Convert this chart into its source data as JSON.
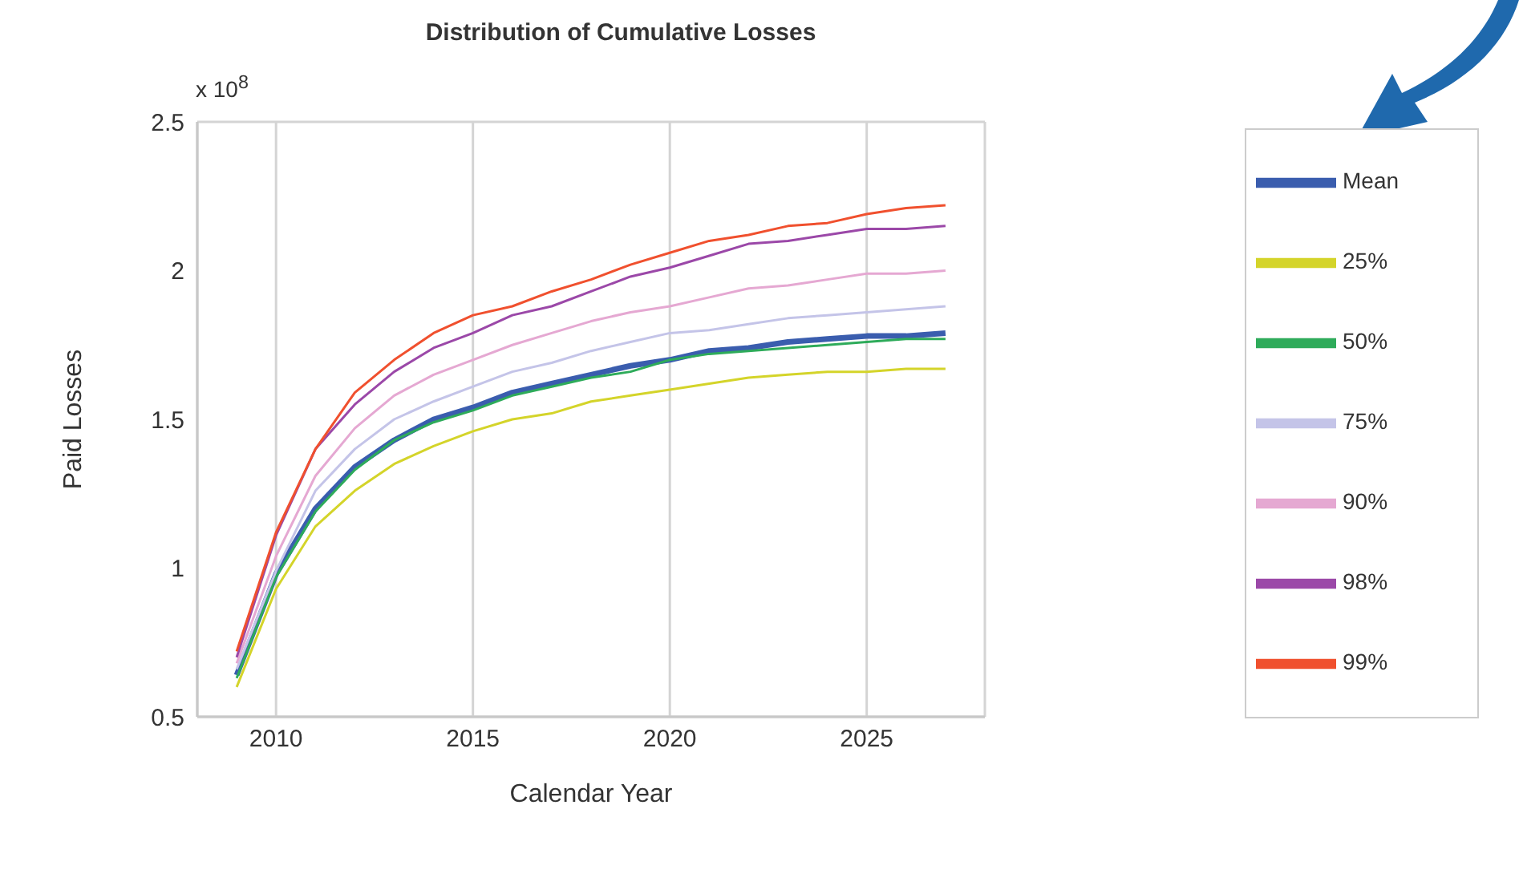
{
  "chart_data": {
    "type": "line",
    "title": "Distribution of Cumulative Losses",
    "xlabel": "Calendar Year",
    "ylabel": "Paid Losses",
    "annotations": [
      "x 10$^{8}$"
    ],
    "x": [
      2009,
      2010,
      2011,
      2012,
      2013,
      2014,
      2015,
      2016,
      2017,
      2018,
      2019,
      2020,
      2021,
      2022,
      2023,
      2024,
      2025,
      2026,
      2027
    ],
    "series": [
      {
        "name": "Mean",
        "color": "#3a5dae",
        "values": [
          0.64,
          0.98,
          1.2,
          1.34,
          1.43,
          1.5,
          1.54,
          1.59,
          1.62,
          1.65,
          1.68,
          1.7,
          1.73,
          1.74,
          1.76,
          1.77,
          1.78,
          1.78,
          1.79
        ]
      },
      {
        "name": "25%",
        "color": "#d4d42a",
        "values": [
          0.6,
          0.93,
          1.14,
          1.26,
          1.35,
          1.41,
          1.46,
          1.5,
          1.52,
          1.56,
          1.58,
          1.6,
          1.62,
          1.64,
          1.65,
          1.66,
          1.66,
          1.67,
          1.67
        ]
      },
      {
        "name": "50%",
        "color": "#2eab5a",
        "values": [
          0.63,
          0.97,
          1.19,
          1.33,
          1.43,
          1.49,
          1.53,
          1.58,
          1.61,
          1.64,
          1.66,
          1.7,
          1.72,
          1.73,
          1.74,
          1.75,
          1.76,
          1.77,
          1.77
        ]
      },
      {
        "name": "75%",
        "color": "#c4c4e8",
        "values": [
          0.66,
          0.99,
          1.26,
          1.4,
          1.5,
          1.56,
          1.61,
          1.66,
          1.69,
          1.73,
          1.76,
          1.79,
          1.8,
          1.82,
          1.84,
          1.85,
          1.86,
          1.87,
          1.88
        ]
      },
      {
        "name": "90%",
        "color": "#e5a8d2",
        "values": [
          0.68,
          1.04,
          1.31,
          1.47,
          1.58,
          1.65,
          1.7,
          1.75,
          1.79,
          1.83,
          1.86,
          1.88,
          1.91,
          1.94,
          1.95,
          1.97,
          1.99,
          1.99,
          2.0
        ]
      },
      {
        "name": "98%",
        "color": "#9b48a8",
        "values": [
          0.7,
          1.11,
          1.4,
          1.55,
          1.66,
          1.74,
          1.79,
          1.85,
          1.88,
          1.93,
          1.98,
          2.01,
          2.05,
          2.09,
          2.1,
          2.12,
          2.14,
          2.14,
          2.15
        ]
      },
      {
        "name": "99%",
        "color": "#f0502e",
        "values": [
          0.72,
          1.12,
          1.4,
          1.59,
          1.7,
          1.79,
          1.85,
          1.88,
          1.93,
          1.97,
          2.02,
          2.06,
          2.1,
          2.12,
          2.15,
          2.16,
          2.19,
          2.21,
          2.22
        ]
      }
    ],
    "xlim": [
      2008,
      2028
    ],
    "xticks": [
      2010,
      2015,
      2020,
      2025
    ],
    "ylim": [
      0.5,
      2.5
    ],
    "yticks": [
      0.5,
      1,
      1.5,
      2,
      2.5
    ],
    "grid": true,
    "legend": "right",
    "marker": "none",
    "line_style": "solid"
  }
}
